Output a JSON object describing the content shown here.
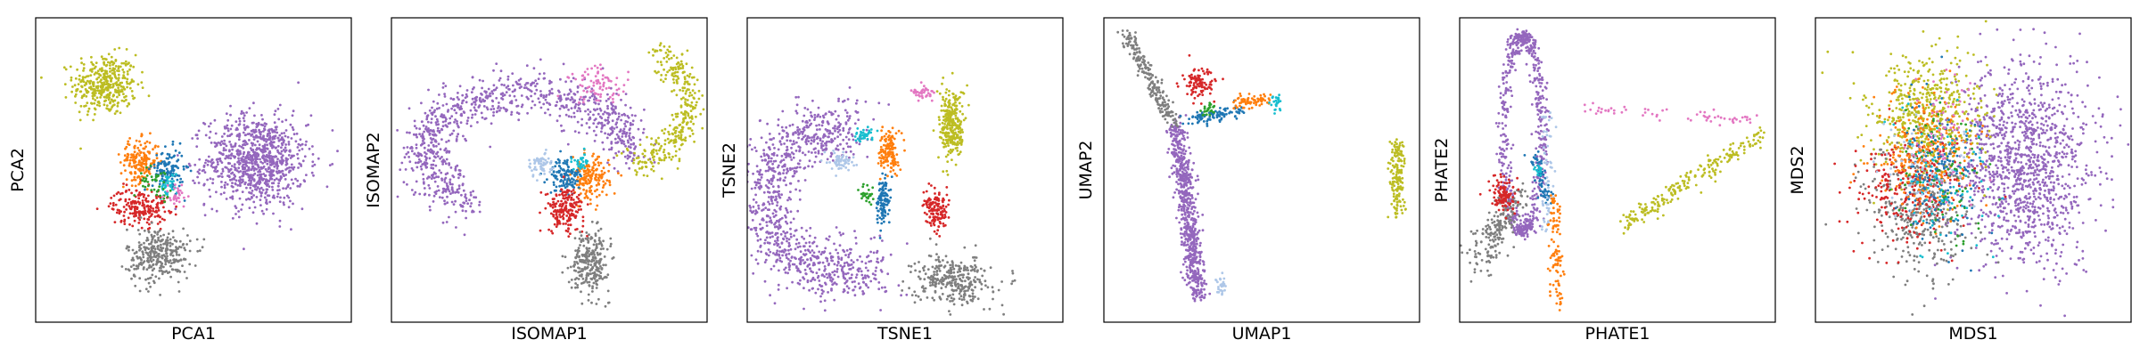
{
  "colors": {
    "tab_blue": "#1f77b4",
    "tab_orange": "#ff7f0e",
    "tab_green": "#2ca02c",
    "tab_red": "#d62728",
    "tab_purple": "#9467bd",
    "tab_pink": "#e377c2",
    "tab_gray": "#7f7f7f",
    "tab_olive": "#bcbd22",
    "tab_cyan": "#17becf",
    "tab_lightblue": "#aec7e8"
  },
  "chart_data": [
    {
      "type": "scatter",
      "xlabel": "PCA1",
      "ylabel": "PCA2",
      "xlim": [
        0,
        100
      ],
      "ylim": [
        0,
        100
      ],
      "grid": false,
      "clusters": [
        {
          "color": "tab_olive",
          "cx": 22,
          "cy": 78,
          "rx": 10,
          "ry": 10,
          "n": 380
        },
        {
          "color": "tab_purple",
          "cx": 70,
          "cy": 53,
          "rx": 16,
          "ry": 15,
          "n": 900
        },
        {
          "color": "tab_orange",
          "cx": 33,
          "cy": 53,
          "rx": 6,
          "ry": 7,
          "n": 180
        },
        {
          "color": "tab_blue",
          "cx": 42,
          "cy": 50,
          "rx": 5,
          "ry": 7,
          "n": 120
        },
        {
          "color": "tab_cyan",
          "cx": 42,
          "cy": 45,
          "rx": 3,
          "ry": 4,
          "n": 40
        },
        {
          "color": "tab_red",
          "cx": 33,
          "cy": 38,
          "rx": 9,
          "ry": 6,
          "n": 200
        },
        {
          "color": "tab_gray",
          "cx": 39,
          "cy": 22,
          "rx": 10,
          "ry": 9,
          "n": 320
        },
        {
          "color": "tab_green",
          "cx": 38,
          "cy": 46,
          "rx": 5,
          "ry": 5,
          "n": 40
        },
        {
          "color": "tab_pink",
          "cx": 45,
          "cy": 42,
          "rx": 4,
          "ry": 4,
          "n": 30
        }
      ]
    },
    {
      "type": "scatter",
      "xlabel": "ISOMAP1",
      "ylabel": "ISOMAP2",
      "xlim": [
        0,
        100
      ],
      "ylim": [
        0,
        100
      ],
      "grid": false,
      "clusters": [
        {
          "color": "tab_purple",
          "arc": [
            43,
            55,
            32,
            20,
            0.0,
            4.1
          ],
          "spread": 4,
          "n": 900
        },
        {
          "color": "tab_olive",
          "arc": [
            72,
            72,
            22,
            20,
            -1.4,
            1.0
          ],
          "spread": 2.5,
          "n": 320
        },
        {
          "color": "tab_pink",
          "cx": 66,
          "cy": 78,
          "rx": 10,
          "ry": 6,
          "n": 80
        },
        {
          "color": "tab_orange",
          "cx": 63,
          "cy": 47,
          "rx": 6,
          "ry": 7,
          "n": 160
        },
        {
          "color": "tab_blue",
          "cx": 55,
          "cy": 48,
          "rx": 5,
          "ry": 6,
          "n": 120
        },
        {
          "color": "tab_red",
          "cx": 55,
          "cy": 37,
          "rx": 6,
          "ry": 7,
          "n": 180
        },
        {
          "color": "tab_gray",
          "cx": 63,
          "cy": 20,
          "rx": 6,
          "ry": 10,
          "n": 260
        },
        {
          "color": "tab_lightblue",
          "cx": 47,
          "cy": 52,
          "rx": 4,
          "ry": 4,
          "n": 60
        },
        {
          "color": "tab_cyan",
          "cx": 60,
          "cy": 52,
          "rx": 3,
          "ry": 3,
          "n": 30
        }
      ]
    },
    {
      "type": "scatter",
      "xlabel": "TSNE1",
      "ylabel": "TSNE2",
      "xlim": [
        0,
        100
      ],
      "ylim": [
        0,
        100
      ],
      "grid": false,
      "clusters": [
        {
          "color": "tab_purple",
          "arc": [
            30,
            40,
            24,
            24,
            1.4,
            5.2
          ],
          "spread": 5,
          "n": 1000
        },
        {
          "color": "tab_olive",
          "cx": 65,
          "cy": 65,
          "rx": 4,
          "ry": 12,
          "n": 280
        },
        {
          "color": "tab_pink",
          "cx": 56,
          "cy": 75,
          "rx": 4,
          "ry": 2,
          "n": 40
        },
        {
          "color": "tab_gray",
          "cx": 65,
          "cy": 14,
          "rx": 12,
          "ry": 8,
          "n": 320
        },
        {
          "color": "tab_red",
          "cx": 60,
          "cy": 36,
          "rx": 4,
          "ry": 6,
          "n": 140
        },
        {
          "color": "tab_blue",
          "cx": 43,
          "cy": 40,
          "rx": 2,
          "ry": 8,
          "n": 120
        },
        {
          "color": "tab_orange",
          "cx": 45,
          "cy": 56,
          "rx": 3,
          "ry": 7,
          "n": 140
        },
        {
          "color": "tab_cyan",
          "cx": 37,
          "cy": 62,
          "rx": 3,
          "ry": 3,
          "n": 40
        },
        {
          "color": "tab_lightblue",
          "cx": 30,
          "cy": 53,
          "rx": 4,
          "ry": 3,
          "n": 60
        },
        {
          "color": "tab_green",
          "cx": 38,
          "cy": 42,
          "rx": 2,
          "ry": 3,
          "n": 25
        }
      ]
    },
    {
      "type": "scatter",
      "xlabel": "UMAP1",
      "ylabel": "UMAP2",
      "xlim": [
        0,
        100
      ],
      "ylim": [
        0,
        100
      ],
      "grid": false,
      "clusters": [
        {
          "color": "tab_purple",
          "line": [
            23,
            65,
            30,
            8
          ],
          "spread": 1.5,
          "n": 700
        },
        {
          "color": "tab_gray",
          "line": [
            7,
            95,
            22,
            65
          ],
          "spread": 1.3,
          "n": 220
        },
        {
          "color": "tab_red",
          "cx": 30,
          "cy": 78,
          "rx": 5,
          "ry": 5,
          "n": 100
        },
        {
          "color": "tab_blue",
          "line": [
            26,
            66,
            45,
            70
          ],
          "spread": 1.2,
          "n": 100
        },
        {
          "color": "tab_orange",
          "line": [
            42,
            72,
            52,
            74
          ],
          "spread": 1.2,
          "n": 70
        },
        {
          "color": "tab_cyan",
          "cx": 54,
          "cy": 72,
          "rx": 2,
          "ry": 3,
          "n": 25
        },
        {
          "color": "tab_green",
          "cx": 33,
          "cy": 70,
          "rx": 2,
          "ry": 2,
          "n": 25
        },
        {
          "color": "tab_olive",
          "line": [
            93,
            60,
            93,
            35
          ],
          "spread": 1.2,
          "n": 160
        },
        {
          "color": "tab_lightblue",
          "cx": 37,
          "cy": 12,
          "rx": 2,
          "ry": 3,
          "n": 30
        }
      ]
    },
    {
      "type": "scatter",
      "xlabel": "PHATE1",
      "ylabel": "PHATE2",
      "xlim": [
        0,
        100
      ],
      "ylim": [
        0,
        100
      ],
      "grid": false,
      "clusters": [
        {
          "color": "tab_purple",
          "arc": [
            20,
            62,
            6,
            32,
            0.0,
            6.28
          ],
          "spread": 1.2,
          "n": 600
        },
        {
          "color": "tab_gray",
          "line": [
            5,
            18,
            18,
            42
          ],
          "spread": 2.5,
          "n": 200
        },
        {
          "color": "tab_red",
          "cx": 14,
          "cy": 42,
          "rx": 4,
          "ry": 5,
          "n": 110
        },
        {
          "color": "tab_blue",
          "line": [
            24,
            55,
            28,
            40
          ],
          "spread": 1,
          "n": 70
        },
        {
          "color": "tab_lightblue",
          "line": [
            28,
            70,
            28,
            30
          ],
          "spread": 1,
          "n": 60
        },
        {
          "color": "tab_orange",
          "line": [
            30,
            42,
            31,
            5
          ],
          "spread": 1,
          "n": 100
        },
        {
          "color": "tab_olive",
          "line": [
            52,
            32,
            96,
            62
          ],
          "spread": 1.5,
          "n": 220
        },
        {
          "color": "tab_pink",
          "line": [
            40,
            70,
            95,
            66
          ],
          "spread": 1,
          "n": 60
        },
        {
          "color": "tab_cyan",
          "cx": 25,
          "cy": 50,
          "rx": 1.5,
          "ry": 2,
          "n": 15
        }
      ]
    },
    {
      "type": "scatter",
      "xlabel": "MDS1",
      "ylabel": "MDS2",
      "xlim": [
        0,
        100
      ],
      "ylim": [
        0,
        100
      ],
      "grid": false,
      "clusters": [
        {
          "color": "tab_purple",
          "cx": 66,
          "cy": 52,
          "rx": 22,
          "ry": 32,
          "n": 1200
        },
        {
          "color": "tab_olive",
          "cx": 35,
          "cy": 68,
          "rx": 18,
          "ry": 20,
          "n": 500
        },
        {
          "color": "tab_gray",
          "cx": 33,
          "cy": 36,
          "rx": 16,
          "ry": 22,
          "n": 380
        },
        {
          "color": "tab_red",
          "cx": 30,
          "cy": 44,
          "rx": 18,
          "ry": 18,
          "n": 260
        },
        {
          "color": "tab_orange",
          "cx": 35,
          "cy": 55,
          "rx": 16,
          "ry": 22,
          "n": 260
        },
        {
          "color": "tab_blue",
          "cx": 40,
          "cy": 50,
          "rx": 14,
          "ry": 22,
          "n": 160
        },
        {
          "color": "tab_green",
          "cx": 40,
          "cy": 48,
          "rx": 14,
          "ry": 22,
          "n": 80
        },
        {
          "color": "tab_cyan",
          "cx": 40,
          "cy": 45,
          "rx": 15,
          "ry": 24,
          "n": 80
        },
        {
          "color": "tab_pink",
          "cx": 42,
          "cy": 60,
          "rx": 12,
          "ry": 20,
          "n": 60
        },
        {
          "color": "tab_lightblue",
          "cx": 36,
          "cy": 50,
          "rx": 16,
          "ry": 22,
          "n": 60
        }
      ]
    }
  ]
}
